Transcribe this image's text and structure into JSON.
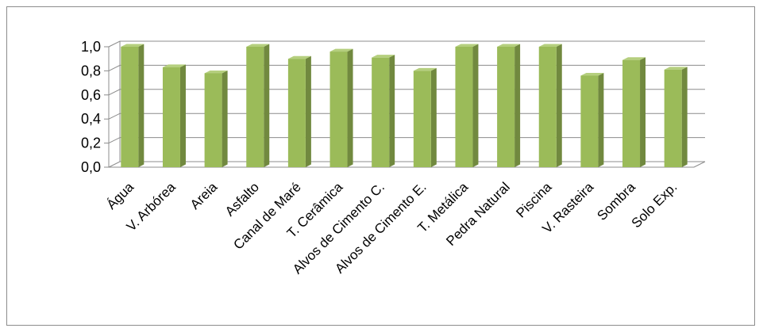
{
  "chart_data": {
    "type": "bar",
    "title": "",
    "xlabel": "",
    "ylabel": "",
    "categories": [
      "Água",
      "V. Arbórea",
      "Areia",
      "Asfalto",
      "Canal de Maré",
      "T. Cerâmica",
      "Alvos de Cimento C.",
      "Alvos de Cimento E.",
      "T. Metálica",
      "Pedra Natural",
      "Piscina",
      "V. Rasteira",
      "Sombra",
      "Solo Exp."
    ],
    "values": [
      1.0,
      0.83,
      0.78,
      1.0,
      0.9,
      0.96,
      0.91,
      0.8,
      1.0,
      1.0,
      1.0,
      0.76,
      0.89,
      0.81
    ],
    "ylim": [
      0,
      1.0
    ],
    "yticks": [
      "0,0",
      "0,2",
      "0,4",
      "0,6",
      "0,8",
      "1,0"
    ],
    "grid": true,
    "legend": "none",
    "style": "3d-column",
    "colors": {
      "bar_front": "#9bbb59",
      "bar_side": "#71893f",
      "bar_top": "#b5cf7e",
      "grid": "#8c8c8c",
      "frame": "#8c8c8c"
    }
  }
}
